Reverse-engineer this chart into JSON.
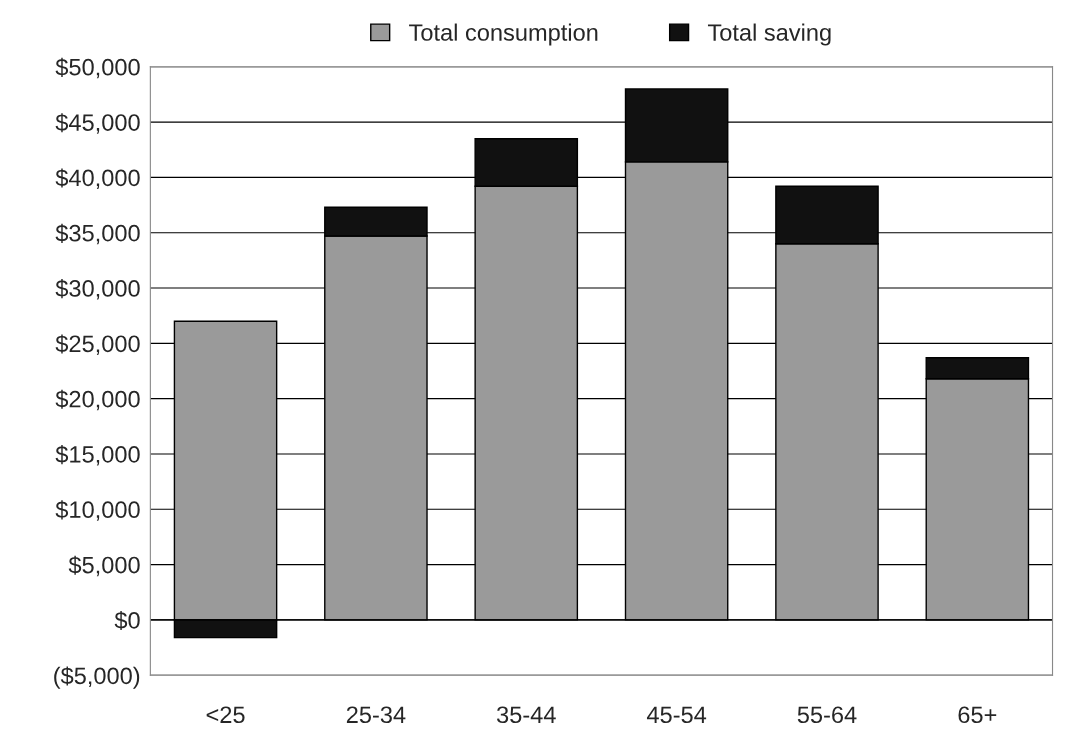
{
  "chart_data": {
    "type": "bar",
    "stacked": true,
    "categories": [
      "<25",
      "25-34",
      "35-44",
      "45-54",
      "55-64",
      "65+"
    ],
    "series": [
      {
        "name": "Total consumption",
        "color": "#9a9a9a",
        "values": [
          27000,
          34700,
          39200,
          41400,
          34000,
          21800
        ]
      },
      {
        "name": "Total saving",
        "color": "#111111",
        "values": [
          -1600,
          2600,
          4300,
          6600,
          5200,
          1900
        ]
      }
    ],
    "ylim": [
      -5000,
      50000
    ],
    "yticks": [
      {
        "value": -5000,
        "label": "($5,000)"
      },
      {
        "value": 0,
        "label": "$0"
      },
      {
        "value": 5000,
        "label": "$5,000"
      },
      {
        "value": 10000,
        "label": "$10,000"
      },
      {
        "value": 15000,
        "label": "$15,000"
      },
      {
        "value": 20000,
        "label": "$20,000"
      },
      {
        "value": 25000,
        "label": "$25,000"
      },
      {
        "value": 30000,
        "label": "$30,000"
      },
      {
        "value": 35000,
        "label": "$35,000"
      },
      {
        "value": 40000,
        "label": "$40,000"
      },
      {
        "value": 45000,
        "label": "$45,000"
      },
      {
        "value": 50000,
        "label": "$50,000"
      }
    ],
    "grid": "y",
    "legend": "top"
  }
}
